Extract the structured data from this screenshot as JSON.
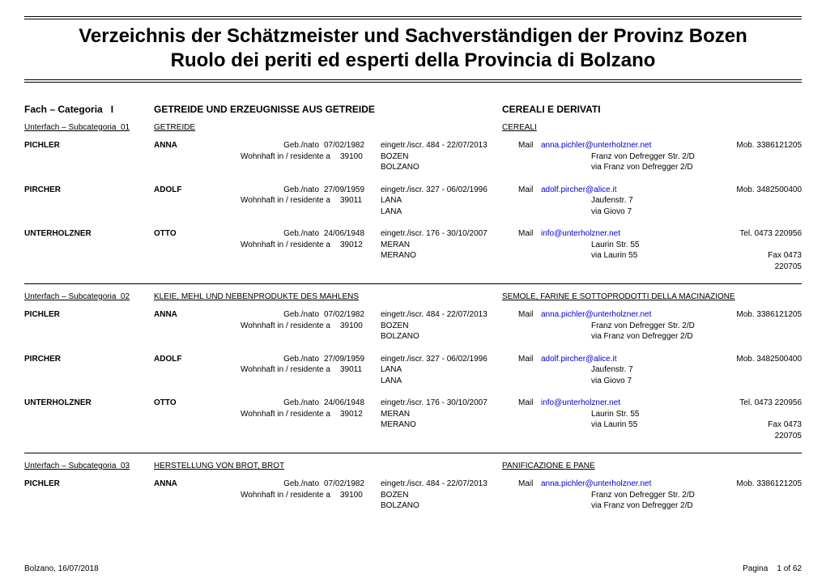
{
  "title_de": "Verzeichnis der Schätzmeister und Sachverständigen der Provinz Bozen",
  "title_it": "Ruolo dei periti ed esperti della Provincia di Bolzano",
  "labels": {
    "category": "Fach – Categoria",
    "subcategory": "Unterfach – Subcategoria",
    "born": "Geb./nato",
    "registered": "eingetr./iscr.",
    "resident": "Wohnhaft in / residente a",
    "mail": "Mail",
    "mob": "Mob.",
    "tel": "Tel.",
    "fax": "Fax",
    "page": "Pagina",
    "page_of": "of"
  },
  "category": {
    "num": "I",
    "de": "GETREIDE UND ERZEUGNISSE AUS GETREIDE",
    "it": "CEREALI E DERIVATI"
  },
  "subcategories": [
    {
      "num": "01",
      "de": "GETREIDE",
      "it": "CEREALI",
      "entries": [
        {
          "last": "PICHLER",
          "first": "ANNA",
          "born": "07/02/1982",
          "reg": "484 - 22/07/2013",
          "zip": "39100",
          "city_de": "BOZEN",
          "city_it": "BOLZANO",
          "email": "anna.pichler@unterholzner.net",
          "addr_de": "Franz von Defregger Str. 2/D",
          "addr_it": "via Franz von Defregger 2/D",
          "phone1_label": "Mob.",
          "phone1": "3386121205",
          "phone2_label": "",
          "phone2": ""
        },
        {
          "last": "PIRCHER",
          "first": "ADOLF",
          "born": "27/09/1959",
          "reg": "327 - 06/02/1996",
          "zip": "39011",
          "city_de": "LANA",
          "city_it": "LANA",
          "email": "adolf.pircher@alice.it",
          "addr_de": "Jaufenstr. 7",
          "addr_it": "via Giovo 7",
          "phone1_label": "Mob.",
          "phone1": "3482500400",
          "phone2_label": "",
          "phone2": ""
        },
        {
          "last": "UNTERHOLZNER",
          "first": "OTTO",
          "born": "24/06/1948",
          "reg": "176 - 30/10/2007",
          "zip": "39012",
          "city_de": "MERAN",
          "city_it": "MERANO",
          "email": "info@unterholzner.net",
          "addr_de": "Laurin Str. 55",
          "addr_it": "via Laurin 55",
          "phone1_label": "Tel.",
          "phone1": "0473 220956",
          "phone2_label": "Fax",
          "phone2": "0473 220705"
        }
      ]
    },
    {
      "num": "02",
      "de": "KLEIE, MEHL UND NEBENPRODUKTE DES MAHLENS",
      "it": "SEMOLE, FARINE E SOTTOPRODOTTI DELLA MACINAZIONE",
      "entries": [
        {
          "last": "PICHLER",
          "first": "ANNA",
          "born": "07/02/1982",
          "reg": "484 - 22/07/2013",
          "zip": "39100",
          "city_de": "BOZEN",
          "city_it": "BOLZANO",
          "email": "anna.pichler@unterholzner.net",
          "addr_de": "Franz von Defregger Str. 2/D",
          "addr_it": "via Franz von Defregger 2/D",
          "phone1_label": "Mob.",
          "phone1": "3386121205",
          "phone2_label": "",
          "phone2": ""
        },
        {
          "last": "PIRCHER",
          "first": "ADOLF",
          "born": "27/09/1959",
          "reg": "327 - 06/02/1996",
          "zip": "39011",
          "city_de": "LANA",
          "city_it": "LANA",
          "email": "adolf.pircher@alice.it",
          "addr_de": "Jaufenstr. 7",
          "addr_it": "via Giovo 7",
          "phone1_label": "Mob.",
          "phone1": "3482500400",
          "phone2_label": "",
          "phone2": ""
        },
        {
          "last": "UNTERHOLZNER",
          "first": "OTTO",
          "born": "24/06/1948",
          "reg": "176 - 30/10/2007",
          "zip": "39012",
          "city_de": "MERAN",
          "city_it": "MERANO",
          "email": "info@unterholzner.net",
          "addr_de": "Laurin Str. 55",
          "addr_it": "via Laurin 55",
          "phone1_label": "Tel.",
          "phone1": "0473 220956",
          "phone2_label": "Fax",
          "phone2": "0473 220705"
        }
      ]
    },
    {
      "num": "03",
      "de": "HERSTELLUNG VON BROT, BROT",
      "it": "PANIFICAZIONE E PANE",
      "entries": [
        {
          "last": "PICHLER",
          "first": "ANNA",
          "born": "07/02/1982",
          "reg": "484 - 22/07/2013",
          "zip": "39100",
          "city_de": "BOZEN",
          "city_it": "BOLZANO",
          "email": "anna.pichler@unterholzner.net",
          "addr_de": "Franz von Defregger Str. 2/D",
          "addr_it": "via Franz von Defregger 2/D",
          "phone1_label": "Mob.",
          "phone1": "3386121205",
          "phone2_label": "",
          "phone2": ""
        }
      ]
    }
  ],
  "footer": {
    "place_date": "Bolzano,  16/07/2018",
    "page": "1",
    "total": "62"
  }
}
